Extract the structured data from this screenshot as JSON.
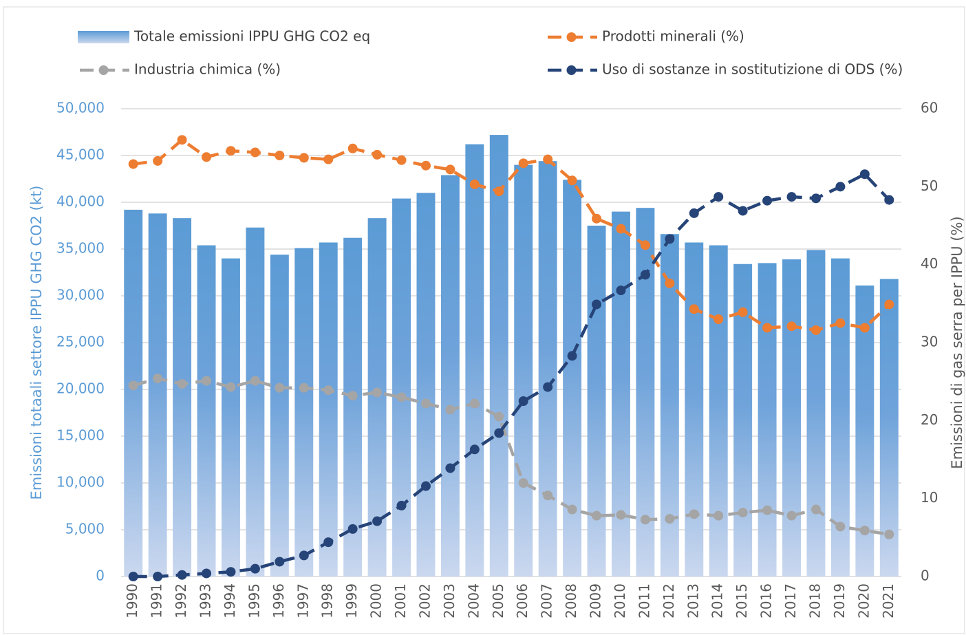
{
  "chart_data": {
    "type": "combo",
    "categories": [
      "1990",
      "1991",
      "1992",
      "1993",
      "1994",
      "1995",
      "1996",
      "1997",
      "1998",
      "1999",
      "2000",
      "2001",
      "2002",
      "2003",
      "2004",
      "2005",
      "2006",
      "2007",
      "2008",
      "2009",
      "2010",
      "2011",
      "2012",
      "2013",
      "2014",
      "2015",
      "2016",
      "2017",
      "2018",
      "2019",
      "2020",
      "2021"
    ],
    "y_label": "Emissioni totaali settore IPPU GHG CO2 (kt)",
    "y2_label": "Emissioni di gas serra per IPPU (%)",
    "ylim": [
      0,
      50000
    ],
    "yticks": [
      0,
      {
        "value": 5000,
        "label": "5,000"
      },
      {
        "value": 10000,
        "label": "10,000"
      },
      {
        "value": 15000,
        "label": "15,000"
      },
      {
        "value": 20000,
        "label": "20,000"
      },
      {
        "value": 25000,
        "label": "25,000"
      },
      {
        "value": 30000,
        "label": "30,000"
      },
      {
        "value": 35000,
        "label": "35,000"
      },
      {
        "value": 40000,
        "label": "40,000"
      },
      {
        "value": 45000,
        "label": "45,000"
      },
      {
        "value": 50000,
        "label": "50,000"
      }
    ],
    "y2lim": [
      0,
      60
    ],
    "y2ticks": [
      0,
      10,
      20,
      30,
      40,
      50,
      60
    ],
    "grid": true,
    "legend": "top",
    "series": [
      {
        "name": "Totale emissioni IPPU GHG CO2 eq",
        "type": "bar",
        "color": "#5b9bd5",
        "values": [
          39200,
          38800,
          38300,
          35400,
          34000,
          37300,
          34400,
          35100,
          35700,
          36200,
          38300,
          40400,
          41000,
          42900,
          46200,
          47200,
          44000,
          44400,
          42400,
          37500,
          39000,
          39400,
          36600,
          35700,
          35400,
          33400,
          33500,
          33900,
          34900,
          34000,
          31100,
          31800
        ]
      },
      {
        "name": "Prodotti minerali (%)",
        "type": "line",
        "axis": "y2",
        "color": "#ed7d31",
        "values": [
          52.9,
          53.3,
          56.0,
          53.8,
          54.6,
          54.4,
          54.0,
          53.7,
          53.5,
          54.9,
          54.1,
          53.4,
          52.7,
          52.2,
          50.3,
          49.4,
          53.0,
          53.5,
          50.8,
          45.9,
          44.6,
          42.5,
          37.6,
          34.3,
          33.0,
          33.9,
          31.9,
          32.1,
          31.6,
          32.5,
          31.9,
          34.9
        ]
      },
      {
        "name": "Industria chimica (%)",
        "type": "line",
        "axis": "y2",
        "color": "#a5a5a5",
        "values": [
          24.5,
          25.4,
          24.7,
          25.1,
          24.3,
          25.1,
          24.2,
          24.2,
          23.9,
          23.2,
          23.6,
          23.0,
          22.2,
          21.4,
          22.2,
          20.5,
          12.0,
          10.4,
          8.6,
          7.8,
          7.9,
          7.3,
          7.4,
          8.0,
          7.8,
          8.2,
          8.5,
          7.8,
          8.6,
          6.4,
          5.9,
          5.4
        ]
      },
      {
        "name": "Uso di sostanze in sostitutizione di ODS (%)",
        "type": "line",
        "axis": "y2",
        "color": "#264478",
        "values": [
          0,
          0,
          0.2,
          0.4,
          0.6,
          1.0,
          1.9,
          2.7,
          4.4,
          6.1,
          7.1,
          9.1,
          11.6,
          13.9,
          16.3,
          18.4,
          22.5,
          24.3,
          28.3,
          34.9,
          36.7,
          38.7,
          43.3,
          46.6,
          48.7,
          46.9,
          48.2,
          48.7,
          48.5,
          50.0,
          51.6,
          48.3
        ]
      }
    ]
  }
}
